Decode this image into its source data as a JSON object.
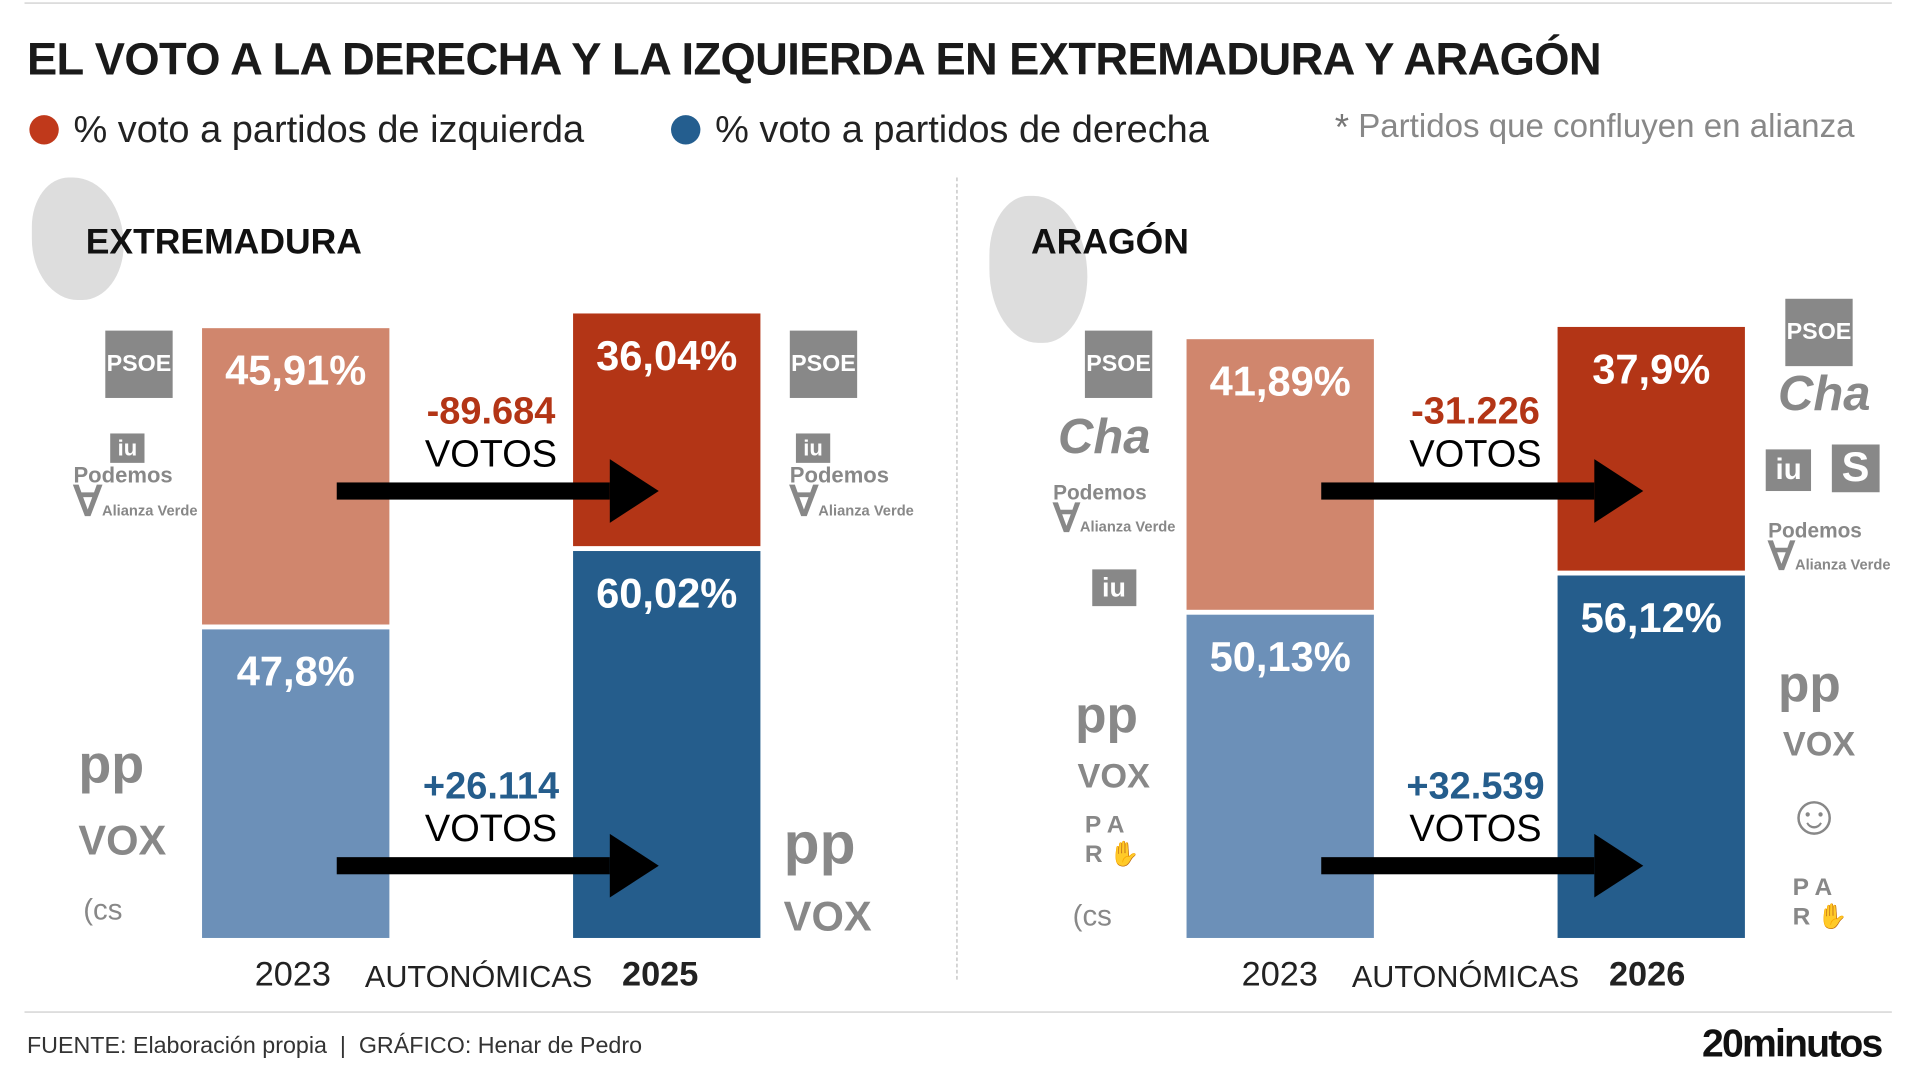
{
  "title": "EL VOTO A LA DERECHA Y LA IZQUIERDA EN EXTREMADURA Y ARAGÓN",
  "legend": [
    {
      "label": "% voto a partidos de izquierda",
      "color": "#c0391b"
    },
    {
      "label": "% voto a partidos de derecha",
      "color": "#245e8f"
    }
  ],
  "note": {
    "mark": "*",
    "text": "Partidos que confluyen en alianza"
  },
  "colors": {
    "left_2023": "#d0866d",
    "left_new": "#b33516",
    "right_2023": "#6c90b8",
    "right_new": "#255d8c",
    "delta_left": "#b33516",
    "delta_right": "#255d8c"
  },
  "chart_data": [
    {
      "type": "bar",
      "stacked": true,
      "title": "EXTREMADURA",
      "categories": [
        "2023",
        "2025"
      ],
      "xlabel": "AUTONÓMICAS",
      "series": [
        {
          "name": "% voto a partidos de izquierda",
          "values": [
            45.91,
            36.04
          ],
          "labels": [
            "45,91%",
            "36,04%"
          ]
        },
        {
          "name": "% voto a partidos de derecha",
          "values": [
            47.8,
            60.02
          ],
          "labels": [
            "47,8%",
            "60,02%"
          ]
        }
      ],
      "annotations": [
        {
          "value": "-89.684",
          "unit": "VOTOS"
        },
        {
          "value": "+26.114",
          "unit": "VOTOS"
        }
      ],
      "logos_left": {
        "2023": [
          "PSOE",
          "IU",
          "Podemos",
          "Alianza Verde"
        ],
        "2025": [
          "PSOE",
          "IU",
          "Podemos",
          "Alianza Verde"
        ]
      },
      "logos_right": {
        "2023": [
          "PP",
          "VOX",
          "CS"
        ],
        "2025": [
          "PP",
          "VOX"
        ]
      }
    },
    {
      "type": "bar",
      "stacked": true,
      "title": "ARAGÓN",
      "categories": [
        "2023",
        "2026"
      ],
      "xlabel": "AUTONÓMICAS",
      "series": [
        {
          "name": "% voto a partidos de izquierda",
          "values": [
            41.89,
            37.9
          ],
          "labels": [
            "41,89%",
            "37,9%"
          ]
        },
        {
          "name": "% voto a partidos de derecha",
          "values": [
            50.13,
            56.12
          ],
          "labels": [
            "50,13%",
            "56,12%"
          ]
        }
      ],
      "annotations": [
        {
          "value": "-31.226",
          "unit": "VOTOS"
        },
        {
          "value": "+32.539",
          "unit": "VOTOS"
        }
      ],
      "logos_left": {
        "2023": [
          "PSOE",
          "CHA",
          "Podemos",
          "Alianza Verde",
          "IU"
        ],
        "2026": [
          "PSOE",
          "CHA",
          "IU",
          "Sumar",
          "Podemos",
          "Alianza Verde"
        ]
      },
      "logos_right": {
        "2023": [
          "PP",
          "VOX",
          "PAR",
          "CS"
        ],
        "2026": [
          "PP",
          "VOX",
          "Teruel Existe",
          "PAR"
        ]
      }
    }
  ],
  "footer": {
    "source": "FUENTE: Elaboración propia  |  GRÁFICO: Henar de Pedro",
    "brand": "20minutos"
  }
}
